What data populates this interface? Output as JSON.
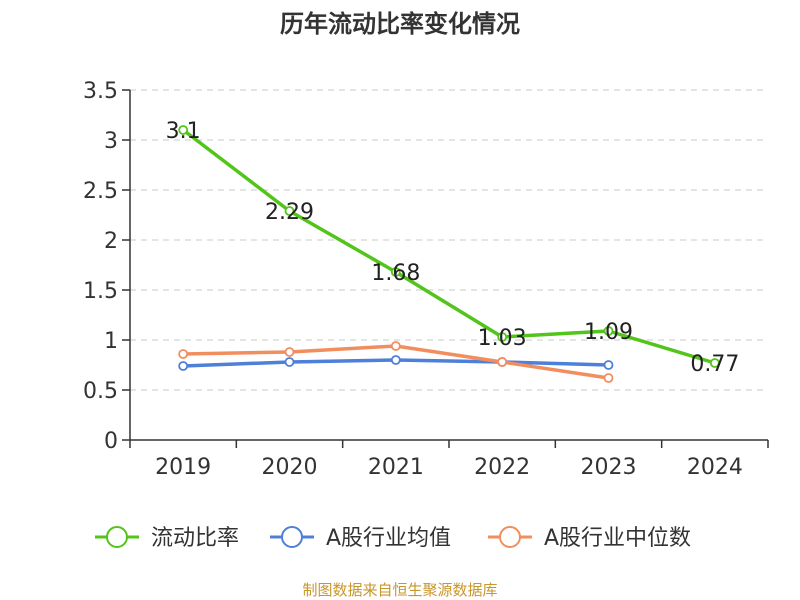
{
  "chart_data": {
    "type": "line",
    "title": "历年流动比率变化情况",
    "categories": [
      "2019",
      "2020",
      "2021",
      "2022",
      "2023",
      "2024"
    ],
    "ylim": [
      0,
      3.5
    ],
    "yticks": [
      "0",
      "0.5",
      "1",
      "1.5",
      "2",
      "2.5",
      "3",
      "3.5"
    ],
    "grid": true,
    "legend_position": "bottom",
    "series": [
      {
        "name": "流动比率",
        "color": "#52c41a",
        "values": [
          3.1,
          2.29,
          1.68,
          1.03,
          1.09,
          0.77
        ],
        "labels": [
          "3.1",
          "2.29",
          "1.68",
          "1.03",
          "1.09",
          "0.77"
        ]
      },
      {
        "name": "A股行业均值",
        "color": "#4e7fd9",
        "values": [
          0.74,
          0.78,
          0.8,
          0.78,
          0.75,
          null
        ]
      },
      {
        "name": "A股行业中位数",
        "color": "#f28d5e",
        "values": [
          0.86,
          0.88,
          0.94,
          0.78,
          0.62,
          null
        ]
      }
    ]
  },
  "footer": {
    "text": "制图数据来自恒生聚源数据库",
    "color": "#c8962a"
  }
}
